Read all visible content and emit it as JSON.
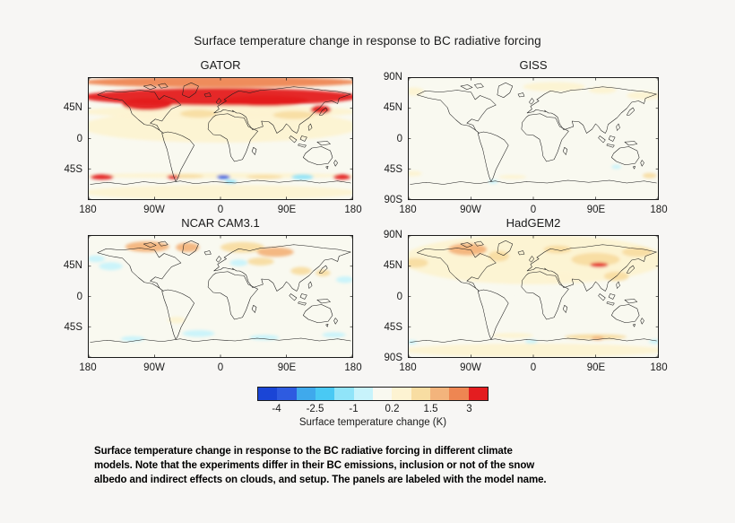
{
  "figure": {
    "title": "Surface temperature change in response to BC radiative forcing",
    "caption_lines": [
      "Surface temperature change in response to the BC radiative forcing in different climate",
      "models. Note that the experiments differ in their BC emissions, inclusion or not of the snow",
      "albedo and indirect effects on clouds, and setup. The panels are labeled with the model name."
    ]
  },
  "chart_data": {
    "type": "heatmap",
    "subtype": "four global map panels, equirectangular projection, lon 180W-180E, lat 90S-90N",
    "title": "Surface temperature change in response to BC radiative forcing",
    "units": "K",
    "colorbar": {
      "label": "Surface temperature change (K)",
      "tick_labels": [
        "-4",
        "-2.5",
        "-1",
        "0.2",
        "1.5",
        "3"
      ],
      "levels": [
        -4.75,
        -4,
        -3.25,
        -2.5,
        -1.75,
        -1,
        -0.4,
        0.2,
        0.85,
        1.5,
        2.25,
        3,
        3.75
      ],
      "colors": [
        "#1a45d6",
        "#2e5be0",
        "#3fa9ec",
        "#49c9f4",
        "#90e4f9",
        "#c8f3fb",
        "#f9f9f0",
        "#fdf3d2",
        "#f8dda2",
        "#f3b47c",
        "#ee8652",
        "#e41d20"
      ],
      "legend_position": "bottom center"
    },
    "panels": [
      {
        "title": "GATOR",
        "y_ticks": [
          "45N",
          "0",
          "45S"
        ],
        "x_ticks": [
          "180",
          "90W",
          "0",
          "90E",
          "180"
        ],
        "base_value": 0.0,
        "summary": "Strong warming (>3 K) across 45N-80N over North America and Eurasia; orange cap 80-90N; cream 0.2-0.85 K through tropics; warm/cool patches (red blobs near 160W, 65W, 165E; blue/cyan near 5E and 110E) along 55-60S.",
        "anomalies": [
          {
            "lon": 0,
            "lat": 18,
            "w": 190,
            "h": 24,
            "v": 0.45
          },
          {
            "lon": 0,
            "lat": 40,
            "w": 190,
            "h": 10,
            "v": 0.5
          },
          {
            "lon": 0,
            "lat": -55,
            "w": 190,
            "h": 4,
            "v": 0.5
          },
          {
            "lon": 0,
            "lat": -80,
            "w": 190,
            "h": 11,
            "v": 0.4
          },
          {
            "lon": -30,
            "lat": 37,
            "w": 25,
            "h": 6,
            "v": 1.2
          },
          {
            "lon": 100,
            "lat": 35,
            "w": 28,
            "h": 6,
            "v": 1.1
          },
          {
            "lon": 0,
            "lat": 84,
            "w": 190,
            "h": 8,
            "v": 2.5
          },
          {
            "lon": 0,
            "lat": 62,
            "w": 190,
            "h": 13,
            "v": 3.3
          },
          {
            "lon": -100,
            "lat": 51,
            "w": 34,
            "h": 9,
            "v": 3.3
          },
          {
            "lon": 60,
            "lat": 56,
            "w": 60,
            "h": 8,
            "v": 3.3
          },
          {
            "lon": 137,
            "lat": 43,
            "w": 14,
            "h": 6,
            "v": 3.3
          },
          {
            "lon": -45,
            "lat": -56,
            "w": 22,
            "h": 3,
            "v": 1.2
          },
          {
            "lon": 60,
            "lat": -57,
            "w": 25,
            "h": 3,
            "v": 1.2
          },
          {
            "lon": -162,
            "lat": -57,
            "w": 16,
            "h": 4,
            "v": 3.3
          },
          {
            "lon": -65,
            "lat": -57,
            "w": 8,
            "h": 3,
            "v": 3.0
          },
          {
            "lon": 166,
            "lat": -57,
            "w": 12,
            "h": 4,
            "v": 3.1
          },
          {
            "lon": 4,
            "lat": -57,
            "w": 9,
            "h": 3,
            "v": -3.5
          },
          {
            "lon": 14,
            "lat": -64,
            "w": 8,
            "h": 3,
            "v": -1.4
          },
          {
            "lon": 112,
            "lat": -57,
            "w": 15,
            "h": 4,
            "v": -1.4
          }
        ]
      },
      {
        "title": "GISS",
        "y_ticks": [
          "90N",
          "45N",
          "0",
          "45S",
          "90S"
        ],
        "x_ticks": [
          "180",
          "90W",
          "0",
          "90E",
          "180"
        ],
        "base_value": 0.0,
        "summary": "Near-zero change almost everywhere; faint warming (~0.5 K) near 75N over northern Europe/Siberia and 60N far-east; faint warm and cool specks in the Southern Ocean.",
        "anomalies": [
          {
            "lon": 30,
            "lat": 77,
            "w": 45,
            "h": 7,
            "v": 0.55
          },
          {
            "lon": 160,
            "lat": 64,
            "w": 25,
            "h": 6,
            "v": 0.5
          },
          {
            "lon": -172,
            "lat": 70,
            "w": 14,
            "h": 6,
            "v": 0.45
          },
          {
            "lon": 100,
            "lat": 72,
            "w": 20,
            "h": 5,
            "v": 0.4
          },
          {
            "lon": -175,
            "lat": -52,
            "w": 14,
            "h": 4,
            "v": 0.5
          },
          {
            "lon": 168,
            "lat": -55,
            "w": 10,
            "h": 4,
            "v": 0.9
          },
          {
            "lon": -30,
            "lat": -57,
            "w": 20,
            "h": 3,
            "v": 0.4
          },
          {
            "lon": -58,
            "lat": -64,
            "w": 7,
            "h": 3,
            "v": -0.6
          },
          {
            "lon": 120,
            "lat": -42,
            "w": 7,
            "h": 3,
            "v": -0.55
          }
        ]
      },
      {
        "title": "NCAR CAM3.1",
        "y_ticks": [
          "45N",
          "0",
          "45S"
        ],
        "x_ticks": [
          "180",
          "90W",
          "0",
          "90E",
          "180"
        ],
        "base_value": 0.0,
        "summary": "Weak pattern: orange warming (1-2 K) over the Canadian Arctic, Greenland and Scandinavia/western Siberia; scattered faint cooling (cyan) in NE Pacific, eastern Europe and along the Southern Ocean.",
        "anomalies": [
          {
            "lon": -100,
            "lat": 74,
            "w": 30,
            "h": 8,
            "v": 1.7
          },
          {
            "lon": -45,
            "lat": 73,
            "w": 16,
            "h": 7,
            "v": 1.9
          },
          {
            "lon": 30,
            "lat": 73,
            "w": 30,
            "h": 8,
            "v": 1.3
          },
          {
            "lon": 75,
            "lat": 66,
            "w": 25,
            "h": 7,
            "v": 1.6
          },
          {
            "lon": 55,
            "lat": 52,
            "w": 18,
            "h": 6,
            "v": 1.0
          },
          {
            "lon": 110,
            "lat": 38,
            "w": 14,
            "h": 6,
            "v": 1.0
          },
          {
            "lon": 140,
            "lat": 35,
            "w": 10,
            "h": 5,
            "v": 0.9
          },
          {
            "lon": -60,
            "lat": -35,
            "w": 12,
            "h": 5,
            "v": 0.5
          },
          {
            "lon": -150,
            "lat": 45,
            "w": 16,
            "h": 6,
            "v": -0.7
          },
          {
            "lon": -170,
            "lat": 56,
            "w": 12,
            "h": 5,
            "v": -0.6
          },
          {
            "lon": 25,
            "lat": 50,
            "w": 12,
            "h": 5,
            "v": -0.45
          },
          {
            "lon": 170,
            "lat": 25,
            "w": 12,
            "h": 5,
            "v": -0.5
          },
          {
            "lon": -30,
            "lat": -55,
            "w": 22,
            "h": 5,
            "v": -0.7
          },
          {
            "lon": 60,
            "lat": -61,
            "w": 20,
            "h": 4,
            "v": -0.6
          },
          {
            "lon": 155,
            "lat": -57,
            "w": 16,
            "h": 4,
            "v": -0.7
          },
          {
            "lon": -120,
            "lat": -63,
            "w": 16,
            "h": 4,
            "v": -0.6
          }
        ]
      },
      {
        "title": "HadGEM2",
        "y_ticks": [
          "90N",
          "45N",
          "0",
          "45S",
          "90S"
        ],
        "x_ticks": [
          "180",
          "90W",
          "0",
          "90E",
          "180"
        ],
        "base_value": 0.0,
        "summary": "Pale warming (0.2-1.5 K) over most of the NH with orange patches over Arctic Canada and NE Siberia and a small red core (~3 K) near 95E/47N; near-zero SH with a warm band and cyan specks along the Antarctic coast.",
        "anomalies": [
          {
            "lon": 0,
            "lat": 55,
            "w": 190,
            "h": 37,
            "v": 0.45
          },
          {
            "lon": 0,
            "lat": -28,
            "w": 190,
            "h": 24,
            "v": 0.05
          },
          {
            "lon": 0,
            "lat": -80,
            "w": 190,
            "h": 10,
            "v": 0.4
          },
          {
            "lon": 40,
            "lat": 28,
            "w": 22,
            "h": 7,
            "v": 0.8
          },
          {
            "lon": 120,
            "lat": 30,
            "w": 18,
            "h": 7,
            "v": 1.0
          },
          {
            "lon": -170,
            "lat": 50,
            "w": 18,
            "h": 7,
            "v": 0.9
          },
          {
            "lon": -95,
            "lat": 70,
            "w": 28,
            "h": 9,
            "v": 1.8
          },
          {
            "lon": -50,
            "lat": 60,
            "w": 15,
            "h": 8,
            "v": 1.2
          },
          {
            "lon": 90,
            "lat": 55,
            "w": 35,
            "h": 10,
            "v": 1.2
          },
          {
            "lon": 150,
            "lat": 66,
            "w": 22,
            "h": 7,
            "v": 1.2
          },
          {
            "lon": 35,
            "lat": 70,
            "w": 20,
            "h": 6,
            "v": 1.1
          },
          {
            "lon": 95,
            "lat": 47,
            "w": 13,
            "h": 3.5,
            "v": 3.2
          },
          {
            "lon": 90,
            "lat": -60,
            "w": 45,
            "h": 4,
            "v": 1.0
          },
          {
            "lon": 93,
            "lat": -62,
            "w": 9,
            "h": 3,
            "v": 1.8
          },
          {
            "lon": -30,
            "lat": -58,
            "w": 30,
            "h": 4,
            "v": 0.6
          },
          {
            "lon": -3,
            "lat": -67,
            "w": 9,
            "h": 3,
            "v": -0.9
          },
          {
            "lon": 176,
            "lat": -67,
            "w": 9,
            "h": 3,
            "v": -1.0
          },
          {
            "lon": -176,
            "lat": -68,
            "w": 8,
            "h": 3,
            "v": -0.9
          }
        ]
      }
    ]
  }
}
